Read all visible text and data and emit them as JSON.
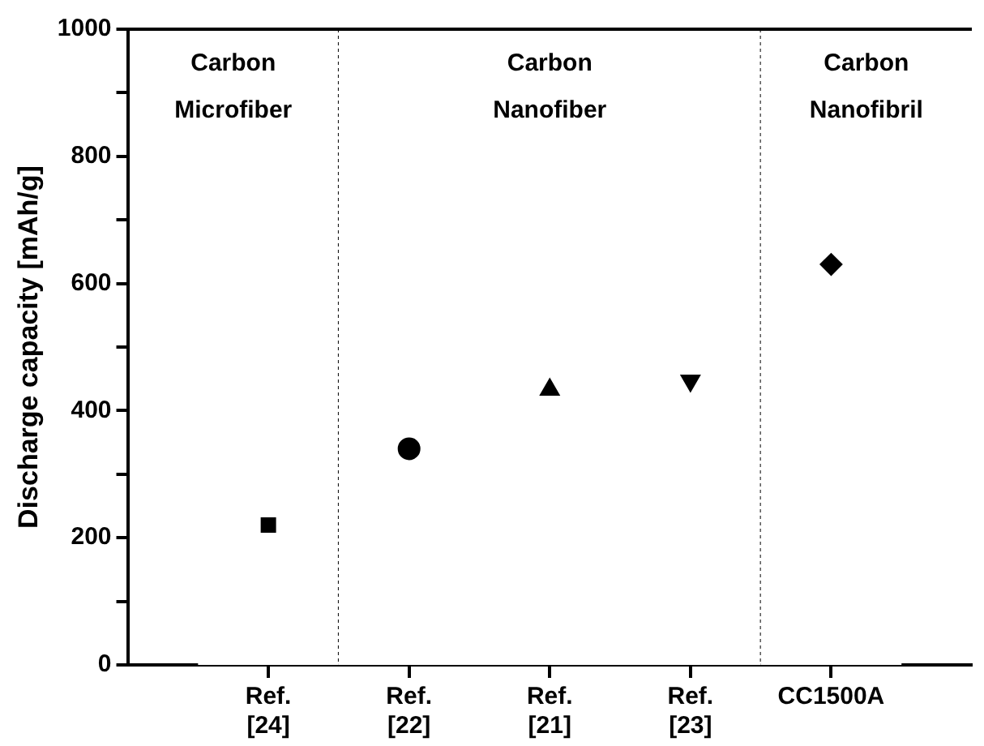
{
  "chart_data": {
    "type": "scatter",
    "ylabel": "Discharge capacity [mAh/g]",
    "categories": [
      "Ref. [24]",
      "Ref. [22]",
      "Ref. [21]",
      "Ref. [23]",
      "CC1500A"
    ],
    "series": [
      {
        "color": "#000000",
        "marker": "square",
        "values": [
          220,
          null,
          null,
          null,
          null
        ]
      },
      {
        "color": "#000000",
        "marker": "circle",
        "values": [
          null,
          340,
          null,
          null,
          null
        ]
      },
      {
        "color": "#000000",
        "marker": "triangle",
        "values": [
          null,
          null,
          433,
          null,
          null
        ]
      },
      {
        "color": "#000000",
        "marker": "triangle-down",
        "values": [
          null,
          null,
          null,
          447,
          null
        ]
      },
      {
        "color": "#000000",
        "marker": "diamond",
        "values": [
          null,
          null,
          null,
          null,
          630
        ]
      }
    ],
    "ylim": [
      0,
      1000
    ],
    "yticks": [
      0,
      {
        "value": 100,
        "label": null
      },
      200,
      {
        "value": 300,
        "label": null
      },
      400,
      {
        "value": 500,
        "label": null
      },
      600,
      {
        "value": 700,
        "label": null
      },
      800,
      {
        "value": 900,
        "label": null
      },
      1000
    ],
    "bands": [
      {
        "axis": "x",
        "from": "Ref. [24]",
        "to": "Ref. [24]",
        "label": "Carbon Microfiber",
        "color": "#ffffff"
      },
      {
        "axis": "x",
        "from": "Ref. [22]",
        "to": "Ref. [23]",
        "label": "Carbon Nanofiber",
        "color": "#ffffff"
      },
      {
        "axis": "x",
        "from": "CC1500A",
        "to": "CC1500A",
        "label": "Carbon Nanofibril",
        "color": "#ffffff"
      }
    ],
    "grid": false,
    "legend": false
  }
}
